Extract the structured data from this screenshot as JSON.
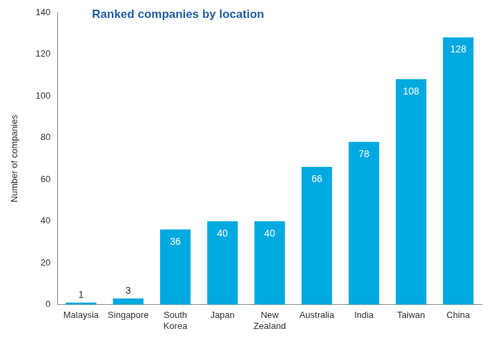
{
  "chart_data": {
    "type": "bar",
    "title": "Ranked companies by location",
    "y_label": "Number of companies",
    "categories": [
      "Malaysia",
      "Singapore",
      "South Korea",
      "Japan",
      "New Zealand",
      "Australia",
      "India",
      "Taiwan",
      "China"
    ],
    "values": [
      1,
      3,
      36,
      40,
      40,
      66,
      78,
      108,
      128
    ],
    "color": "#00a9e0",
    "ylim": [
      0,
      140
    ],
    "yticks": [
      0,
      20,
      40,
      60,
      80,
      100,
      120,
      140
    ],
    "grid": false,
    "data_labels": true
  }
}
